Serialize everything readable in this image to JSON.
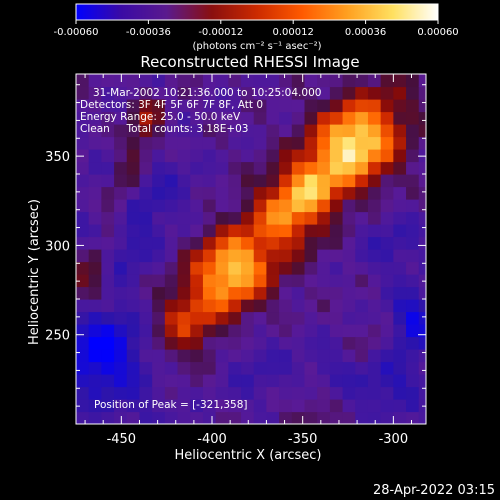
{
  "colorbar": {
    "ticks": [
      "-0.00060",
      "-0.00036",
      "-0.00012",
      "0.00012",
      "0.00036",
      "0.00060"
    ],
    "units": "(photons cm⁻² s⁻¹ asec⁻²)",
    "colors": [
      "#0000ff",
      "#3a0aa5",
      "#5a1a8e",
      "#8a0f0f",
      "#cc2a00",
      "#ff5a00",
      "#ffa020",
      "#ffe060",
      "#ffffff"
    ]
  },
  "chart_data": {
    "type": "heatmap",
    "title": "Reconstructed RHESSI Image",
    "xlabel": "Heliocentric X (arcsec)",
    "ylabel": "Heliocentric Y (arcsec)",
    "xlim": [
      -475,
      -282
    ],
    "ylim": [
      200,
      396
    ],
    "x_ticks": [
      -450,
      -400,
      -350,
      -300
    ],
    "y_ticks": [
      250,
      300,
      350
    ],
    "peak": {
      "x": -321,
      "y": 358
    },
    "colorscale": {
      "min": -0.0006,
      "max": 0.0006
    },
    "annotations": [
      "31-Mar-2002 10:21:36.000 to 10:25:04.000",
      "Detectors: 3F 4F 5F 6F 7F 8F, Att 0",
      "Energy Range: 25.0 - 50.0 keV",
      "Clean     Total counts: 3.18E+03",
      "Position of Peak = [-321,358]"
    ]
  },
  "footer": {
    "timestamp": "28-Apr-2022 03:15"
  }
}
